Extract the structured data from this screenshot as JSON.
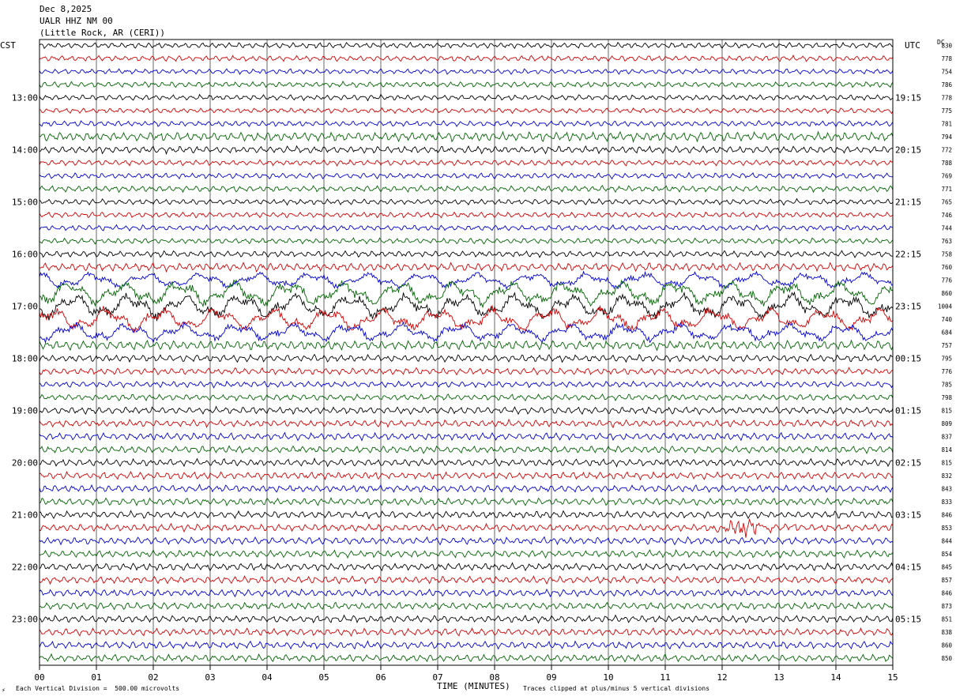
{
  "header": {
    "date": "Dec 8,2025",
    "station": "UALR HHZ NM 00",
    "location": "(Little Rock, AR (CERI))"
  },
  "labels": {
    "left_tz": "CST",
    "right_tz": "UTC",
    "dc": "DC",
    "x_title": "TIME (MINUTES)",
    "scale_note": "Each Vertical Division =  500.00 microvolts",
    "clip_note": "Traces clipped at plus/minus 5 vertical divisions"
  },
  "colors": {
    "cycle": [
      "#000000",
      "#d40000",
      "#0000d4",
      "#006400"
    ],
    "grid": "#000000"
  },
  "chart_data": {
    "type": "line",
    "title": "UALR HHZ NM 00",
    "xlabel": "TIME (MINUTES)",
    "x_ticks": [
      "00",
      "01",
      "02",
      "03",
      "04",
      "05",
      "06",
      "07",
      "08",
      "09",
      "10",
      "11",
      "12",
      "13",
      "14",
      "15"
    ],
    "xlim": [
      0,
      15
    ],
    "rows_per_hour": 4,
    "row_minutes": 15,
    "left_hour_labels": [
      "13:00",
      "14:00",
      "15:00",
      "16:00",
      "17:00",
      "18:00",
      "19:00",
      "20:00",
      "21:00",
      "22:00",
      "23:00"
    ],
    "right_hour_labels": [
      "19:15",
      "20:15",
      "21:15",
      "22:15",
      "23:15",
      "00:15",
      "01:15",
      "02:15",
      "03:15",
      "04:15",
      "05:15"
    ],
    "dc_offsets": [
      830,
      778,
      754,
      786,
      778,
      775,
      781,
      794,
      772,
      788,
      769,
      771,
      765,
      746,
      744,
      763,
      758,
      760,
      776,
      860,
      1004,
      740,
      684,
      757,
      795,
      776,
      785,
      798,
      815,
      809,
      837,
      814,
      815,
      832,
      843,
      833,
      846,
      853,
      844,
      854,
      845,
      857,
      846,
      873,
      851,
      838,
      860,
      850
    ],
    "trace_amplitude": [
      0.55,
      0.55,
      0.5,
      0.55,
      0.55,
      0.5,
      0.55,
      0.9,
      0.7,
      0.55,
      0.55,
      0.6,
      0.55,
      0.55,
      0.55,
      0.55,
      0.6,
      0.8,
      1.6,
      2.5,
      2.5,
      2.3,
      1.8,
      0.9,
      0.7,
      0.65,
      0.6,
      0.6,
      0.7,
      0.7,
      0.7,
      0.7,
      0.7,
      0.7,
      0.7,
      0.7,
      0.7,
      0.7,
      0.7,
      0.7,
      0.7,
      0.7,
      0.7,
      0.7,
      0.7,
      0.7,
      0.7,
      0.7
    ],
    "events": [
      {
        "row": 37,
        "start_min": 11.8,
        "end_min": 13.6,
        "peak_min": 12.4,
        "amplitude": 1.3
      }
    ]
  }
}
